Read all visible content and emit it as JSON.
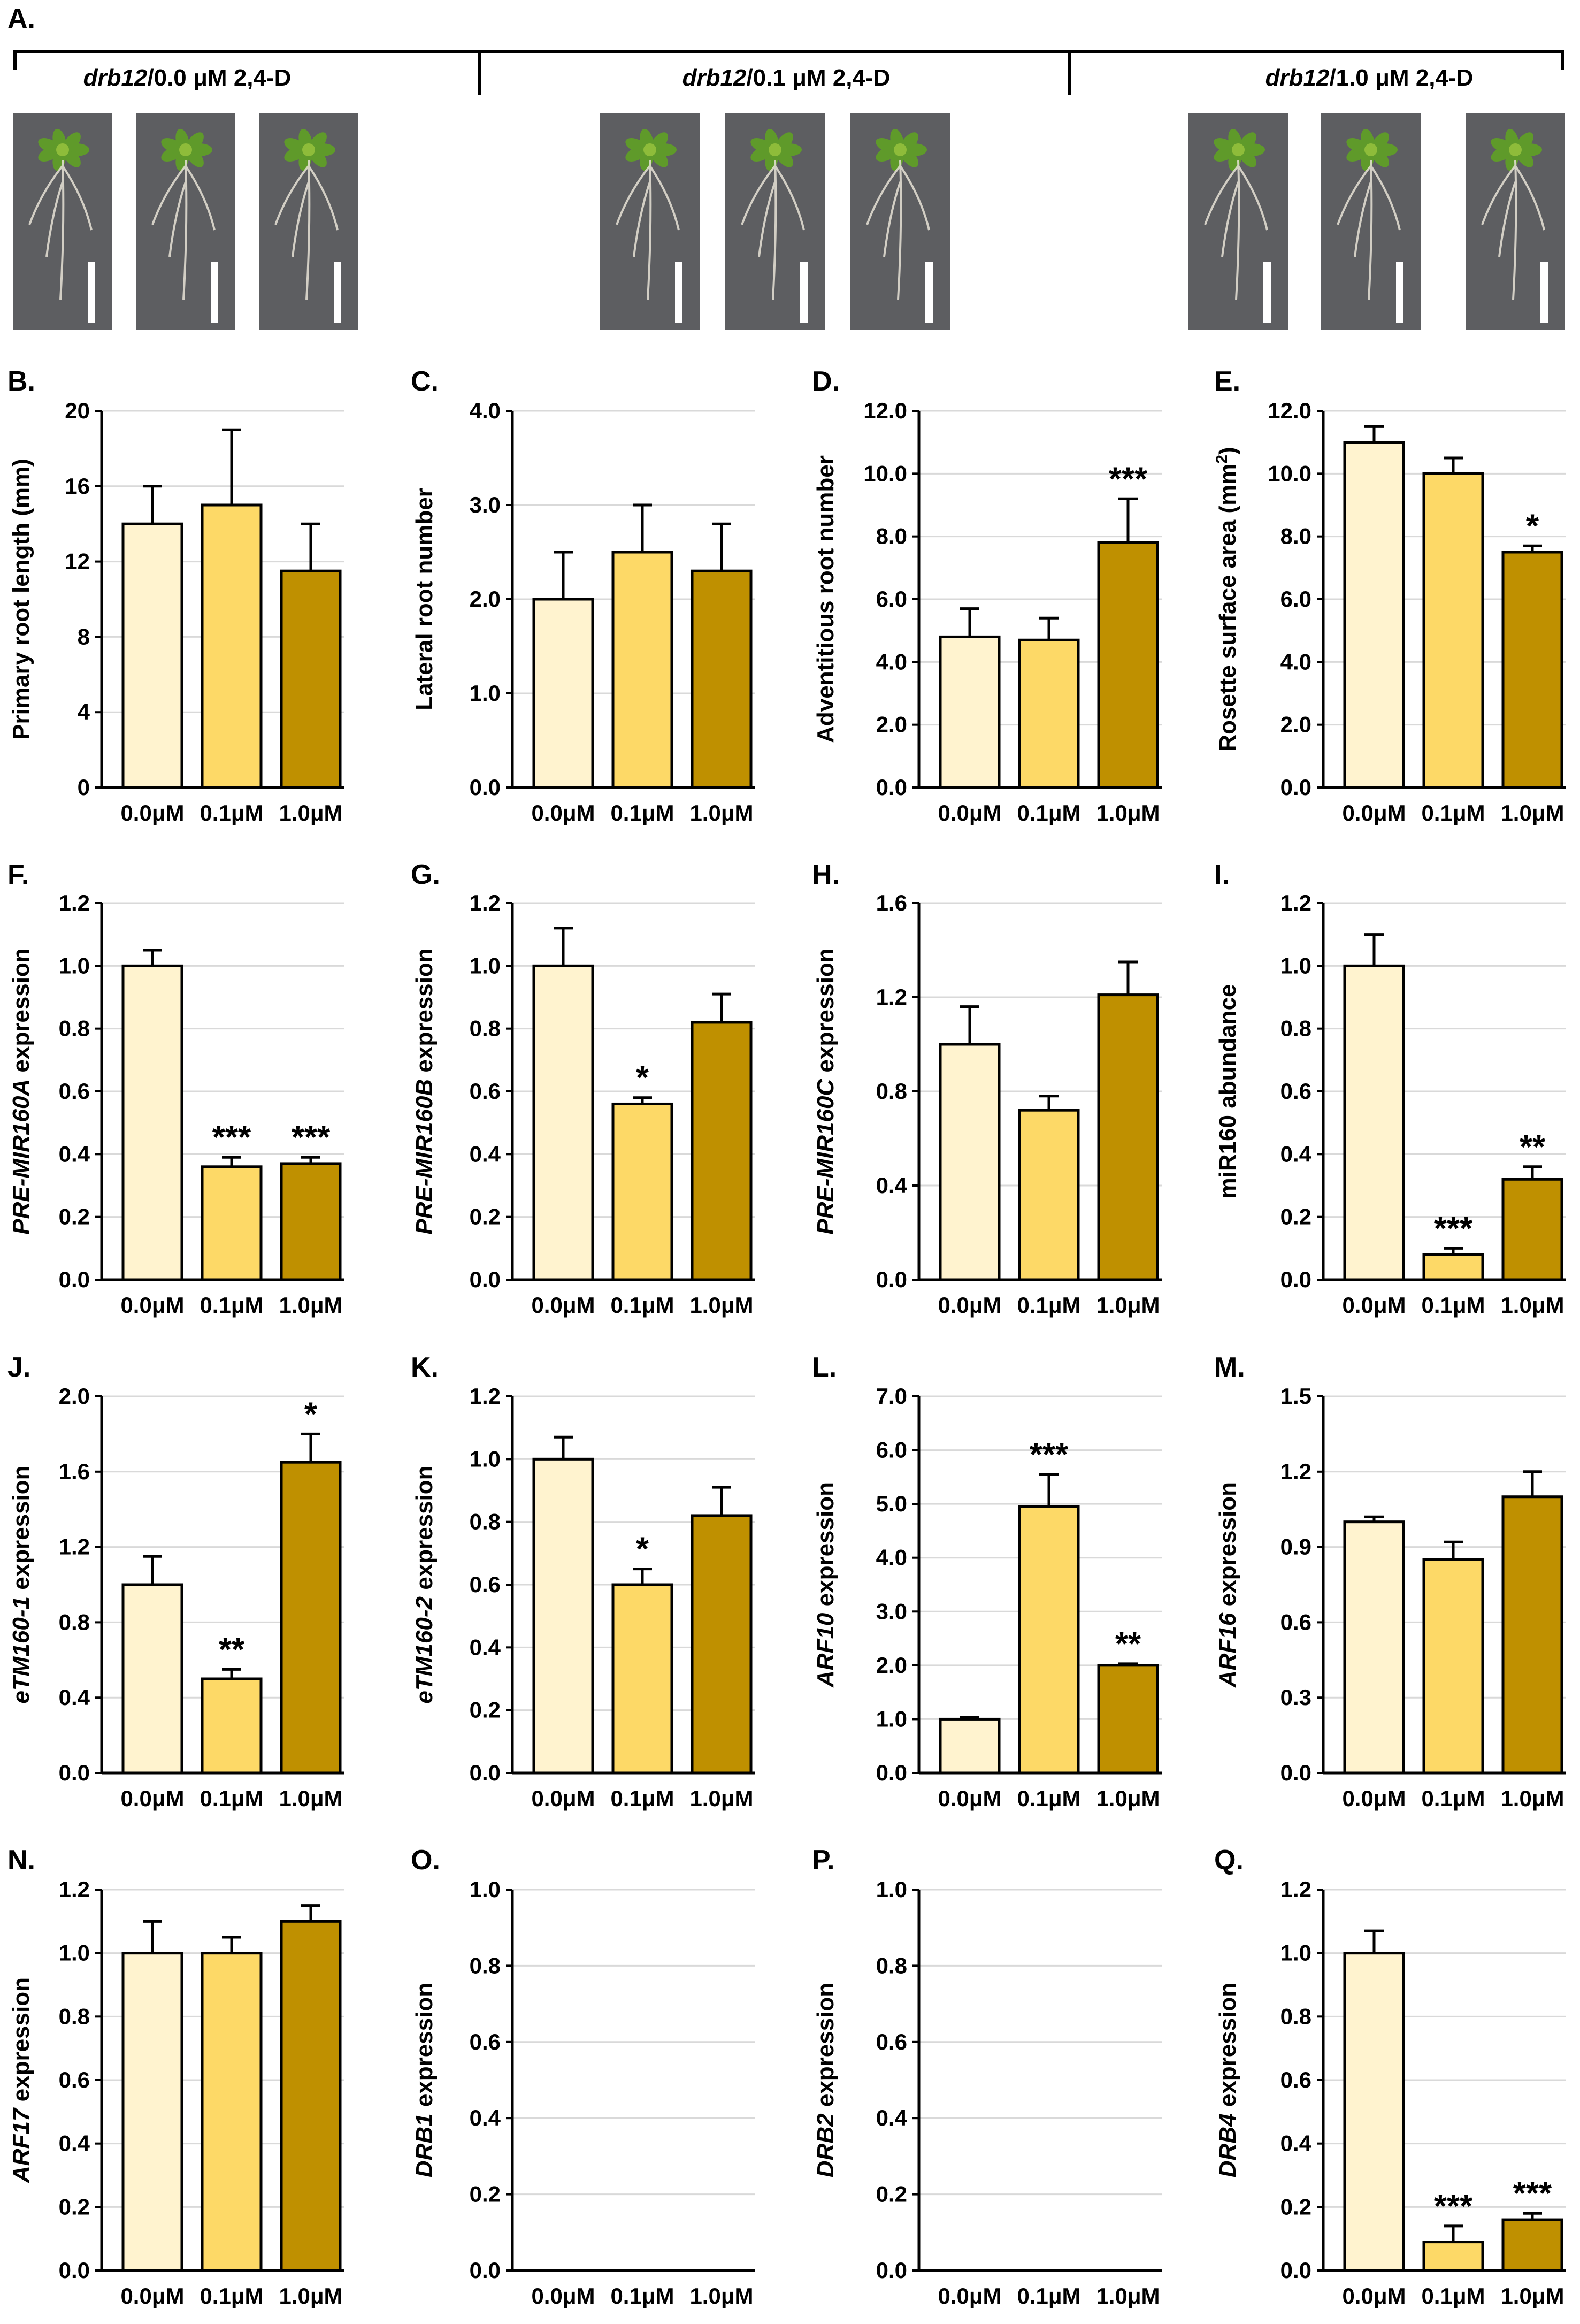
{
  "figure_label": "A.",
  "colors": {
    "c0": "#fff3cf",
    "c1": "#fdd967",
    "c2": "#bf9000"
  },
  "photo_panel": {
    "unit": "μM",
    "groups": [
      {
        "genotype": "drb12",
        "conc": "0.0",
        "suffix": " 2,4-D"
      },
      {
        "genotype": "drb12",
        "conc": "0.1",
        "suffix": " 2,4-D"
      },
      {
        "genotype": "drb12",
        "conc": "1.0",
        "suffix": " 2,4-D"
      }
    ]
  },
  "chart_data": [
    {
      "panel": "B.",
      "type": "bar",
      "ylabel": "Primary root length (mm)",
      "ylabel_italic": "",
      "ylabel_rest": "",
      "ylim": [
        0,
        20
      ],
      "ticks": [
        "0",
        "4",
        "8",
        "12",
        "16",
        "20"
      ],
      "categories": [
        "0.0μM",
        "0.1μM",
        "1.0μM"
      ],
      "values": [
        14,
        15,
        11.5
      ],
      "errors": [
        2,
        4,
        2.5
      ],
      "sig": [
        "",
        "",
        ""
      ]
    },
    {
      "panel": "C.",
      "type": "bar",
      "ylabel": "Lateral root number",
      "ylabel_italic": "",
      "ylabel_rest": "",
      "ylim": [
        0,
        4
      ],
      "ticks": [
        "0.0",
        "1.0",
        "2.0",
        "3.0",
        "4.0"
      ],
      "categories": [
        "0.0μM",
        "0.1μM",
        "1.0μM"
      ],
      "values": [
        2.0,
        2.5,
        2.3
      ],
      "errors": [
        0.5,
        0.5,
        0.5
      ],
      "sig": [
        "",
        "",
        ""
      ]
    },
    {
      "panel": "D.",
      "type": "bar",
      "ylabel": "Adventitious root number",
      "ylabel_italic": "",
      "ylabel_rest": "",
      "ylim": [
        0,
        12
      ],
      "ticks": [
        "0.0",
        "2.0",
        "4.0",
        "6.0",
        "8.0",
        "10.0",
        "12.0"
      ],
      "categories": [
        "0.0μM",
        "0.1μM",
        "1.0μM"
      ],
      "values": [
        4.8,
        4.7,
        7.8
      ],
      "errors": [
        0.9,
        0.7,
        1.4
      ],
      "sig": [
        "",
        "",
        "***"
      ]
    },
    {
      "panel": "E.",
      "type": "bar",
      "ylabel": "",
      "ylabel_italic": "",
      "ylabel_rest": "",
      "ylabel_sup": {
        "pre": "Rosette surface area (mm",
        "sup": "2",
        "post": ")"
      },
      "ylim": [
        0,
        12
      ],
      "ticks": [
        "0.0",
        "2.0",
        "4.0",
        "6.0",
        "8.0",
        "10.0",
        "12.0"
      ],
      "categories": [
        "0.0μM",
        "0.1μM",
        "1.0μM"
      ],
      "values": [
        11.0,
        10.0,
        7.5
      ],
      "errors": [
        0.5,
        0.5,
        0.2
      ],
      "sig": [
        "",
        "",
        "*"
      ]
    },
    {
      "panel": "F.",
      "type": "bar",
      "ylabel": "",
      "ylabel_italic": "PRE-MIR160A",
      "ylabel_rest": " expression",
      "ylim": [
        0,
        1.2
      ],
      "ticks": [
        "0.0",
        "0.2",
        "0.4",
        "0.6",
        "0.8",
        "1.0",
        "1.2"
      ],
      "categories": [
        "0.0μM",
        "0.1μM",
        "1.0μM"
      ],
      "values": [
        1.0,
        0.36,
        0.37
      ],
      "errors": [
        0.05,
        0.03,
        0.02
      ],
      "sig": [
        "",
        "***",
        "***"
      ]
    },
    {
      "panel": "G.",
      "type": "bar",
      "ylabel": "",
      "ylabel_italic": "PRE-MIR160B",
      "ylabel_rest": " expression",
      "ylim": [
        0,
        1.2
      ],
      "ticks": [
        "0.0",
        "0.2",
        "0.4",
        "0.6",
        "0.8",
        "1.0",
        "1.2"
      ],
      "categories": [
        "0.0μM",
        "0.1μM",
        "1.0μM"
      ],
      "values": [
        1.0,
        0.56,
        0.82
      ],
      "errors": [
        0.12,
        0.02,
        0.09
      ],
      "sig": [
        "",
        "*",
        ""
      ]
    },
    {
      "panel": "H.",
      "type": "bar",
      "ylabel": "",
      "ylabel_italic": "PRE-MIR160C",
      "ylabel_rest": " expression",
      "ylim": [
        0,
        1.6
      ],
      "ticks": [
        "0.0",
        "0.4",
        "0.8",
        "1.2",
        "1.6"
      ],
      "categories": [
        "0.0μM",
        "0.1μM",
        "1.0μM"
      ],
      "values": [
        1.0,
        0.72,
        1.21
      ],
      "errors": [
        0.16,
        0.06,
        0.14
      ],
      "sig": [
        "",
        "",
        ""
      ]
    },
    {
      "panel": "I.",
      "type": "bar",
      "ylabel": "miR160 abundance",
      "ylabel_italic": "",
      "ylabel_rest": "",
      "ylim": [
        0,
        1.2
      ],
      "ticks": [
        "0.0",
        "0.2",
        "0.4",
        "0.6",
        "0.8",
        "1.0",
        "1.2"
      ],
      "categories": [
        "0.0μM",
        "0.1μM",
        "1.0μM"
      ],
      "values": [
        1.0,
        0.08,
        0.32
      ],
      "errors": [
        0.1,
        0.02,
        0.04
      ],
      "sig": [
        "",
        "***",
        "**"
      ]
    },
    {
      "panel": "J.",
      "type": "bar",
      "ylabel": "",
      "ylabel_italic": "eTM160-1",
      "ylabel_rest": " expression",
      "ylim": [
        0,
        2.0
      ],
      "ticks": [
        "0.0",
        "0.4",
        "0.8",
        "1.2",
        "1.6",
        "2.0"
      ],
      "categories": [
        "0.0μM",
        "0.1μM",
        "1.0μM"
      ],
      "values": [
        1.0,
        0.5,
        1.65
      ],
      "errors": [
        0.15,
        0.05,
        0.15
      ],
      "sig": [
        "",
        "**",
        "*"
      ]
    },
    {
      "panel": "K.",
      "type": "bar",
      "ylabel": "",
      "ylabel_italic": "eTM160-2",
      "ylabel_rest": " expression",
      "ylim": [
        0,
        1.2
      ],
      "ticks": [
        "0.0",
        "0.2",
        "0.4",
        "0.6",
        "0.8",
        "1.0",
        "1.2"
      ],
      "categories": [
        "0.0μM",
        "0.1μM",
        "1.0μM"
      ],
      "values": [
        1.0,
        0.6,
        0.82
      ],
      "errors": [
        0.07,
        0.05,
        0.09
      ],
      "sig": [
        "",
        "*",
        ""
      ]
    },
    {
      "panel": "L.",
      "type": "bar",
      "ylabel": "",
      "ylabel_italic": "ARF10",
      "ylabel_rest": " expression",
      "ylim": [
        0,
        7.0
      ],
      "ticks": [
        "0.0",
        "1.0",
        "2.0",
        "3.0",
        "4.0",
        "5.0",
        "6.0",
        "7.0"
      ],
      "categories": [
        "0.0μM",
        "0.1μM",
        "1.0μM"
      ],
      "values": [
        1.0,
        4.95,
        2.0
      ],
      "errors": [
        0.03,
        0.6,
        0.03
      ],
      "sig": [
        "",
        "***",
        "**"
      ]
    },
    {
      "panel": "M.",
      "type": "bar",
      "ylabel": "",
      "ylabel_italic": "ARF16",
      "ylabel_rest": " expression",
      "ylim": [
        0,
        1.5
      ],
      "ticks": [
        "0.0",
        "0.3",
        "0.6",
        "0.9",
        "1.2",
        "1.5"
      ],
      "categories": [
        "0.0μM",
        "0.1μM",
        "1.0μM"
      ],
      "values": [
        1.0,
        0.85,
        1.1
      ],
      "errors": [
        0.02,
        0.07,
        0.1
      ],
      "sig": [
        "",
        "",
        ""
      ]
    },
    {
      "panel": "N.",
      "type": "bar",
      "ylabel": "",
      "ylabel_italic": "ARF17",
      "ylabel_rest": " expression",
      "ylim": [
        0,
        1.2
      ],
      "ticks": [
        "0.0",
        "0.2",
        "0.4",
        "0.6",
        "0.8",
        "1.0",
        "1.2"
      ],
      "categories": [
        "0.0μM",
        "0.1μM",
        "1.0μM"
      ],
      "values": [
        1.0,
        1.0,
        1.1
      ],
      "errors": [
        0.1,
        0.05,
        0.05
      ],
      "sig": [
        "",
        "",
        ""
      ]
    },
    {
      "panel": "O.",
      "type": "bar",
      "ylabel": "",
      "ylabel_italic": "DRB1",
      "ylabel_rest": " expression",
      "ylim": [
        0,
        1.0
      ],
      "ticks": [
        "0.0",
        "0.2",
        "0.4",
        "0.6",
        "0.8",
        "1.0"
      ],
      "categories": [
        "0.0μM",
        "0.1μM",
        "1.0μM"
      ],
      "values": [
        0,
        0,
        0
      ],
      "errors": [
        0,
        0,
        0
      ],
      "sig": [
        "",
        "",
        ""
      ]
    },
    {
      "panel": "P.",
      "type": "bar",
      "ylabel": "",
      "ylabel_italic": "DRB2",
      "ylabel_rest": " expression",
      "ylim": [
        0,
        1.0
      ],
      "ticks": [
        "0.0",
        "0.2",
        "0.4",
        "0.6",
        "0.8",
        "1.0"
      ],
      "categories": [
        "0.0μM",
        "0.1μM",
        "1.0μM"
      ],
      "values": [
        0,
        0,
        0
      ],
      "errors": [
        0,
        0,
        0
      ],
      "sig": [
        "",
        "",
        ""
      ]
    },
    {
      "panel": "Q.",
      "type": "bar",
      "ylabel": "",
      "ylabel_italic": "DRB4",
      "ylabel_rest": " expression",
      "ylim": [
        0,
        1.2
      ],
      "ticks": [
        "0.0",
        "0.2",
        "0.4",
        "0.6",
        "0.8",
        "1.0",
        "1.2"
      ],
      "categories": [
        "0.0μM",
        "0.1μM",
        "1.0μM"
      ],
      "values": [
        1.0,
        0.09,
        0.16
      ],
      "errors": [
        0.07,
        0.05,
        0.02
      ],
      "sig": [
        "",
        "***",
        "***"
      ]
    }
  ]
}
